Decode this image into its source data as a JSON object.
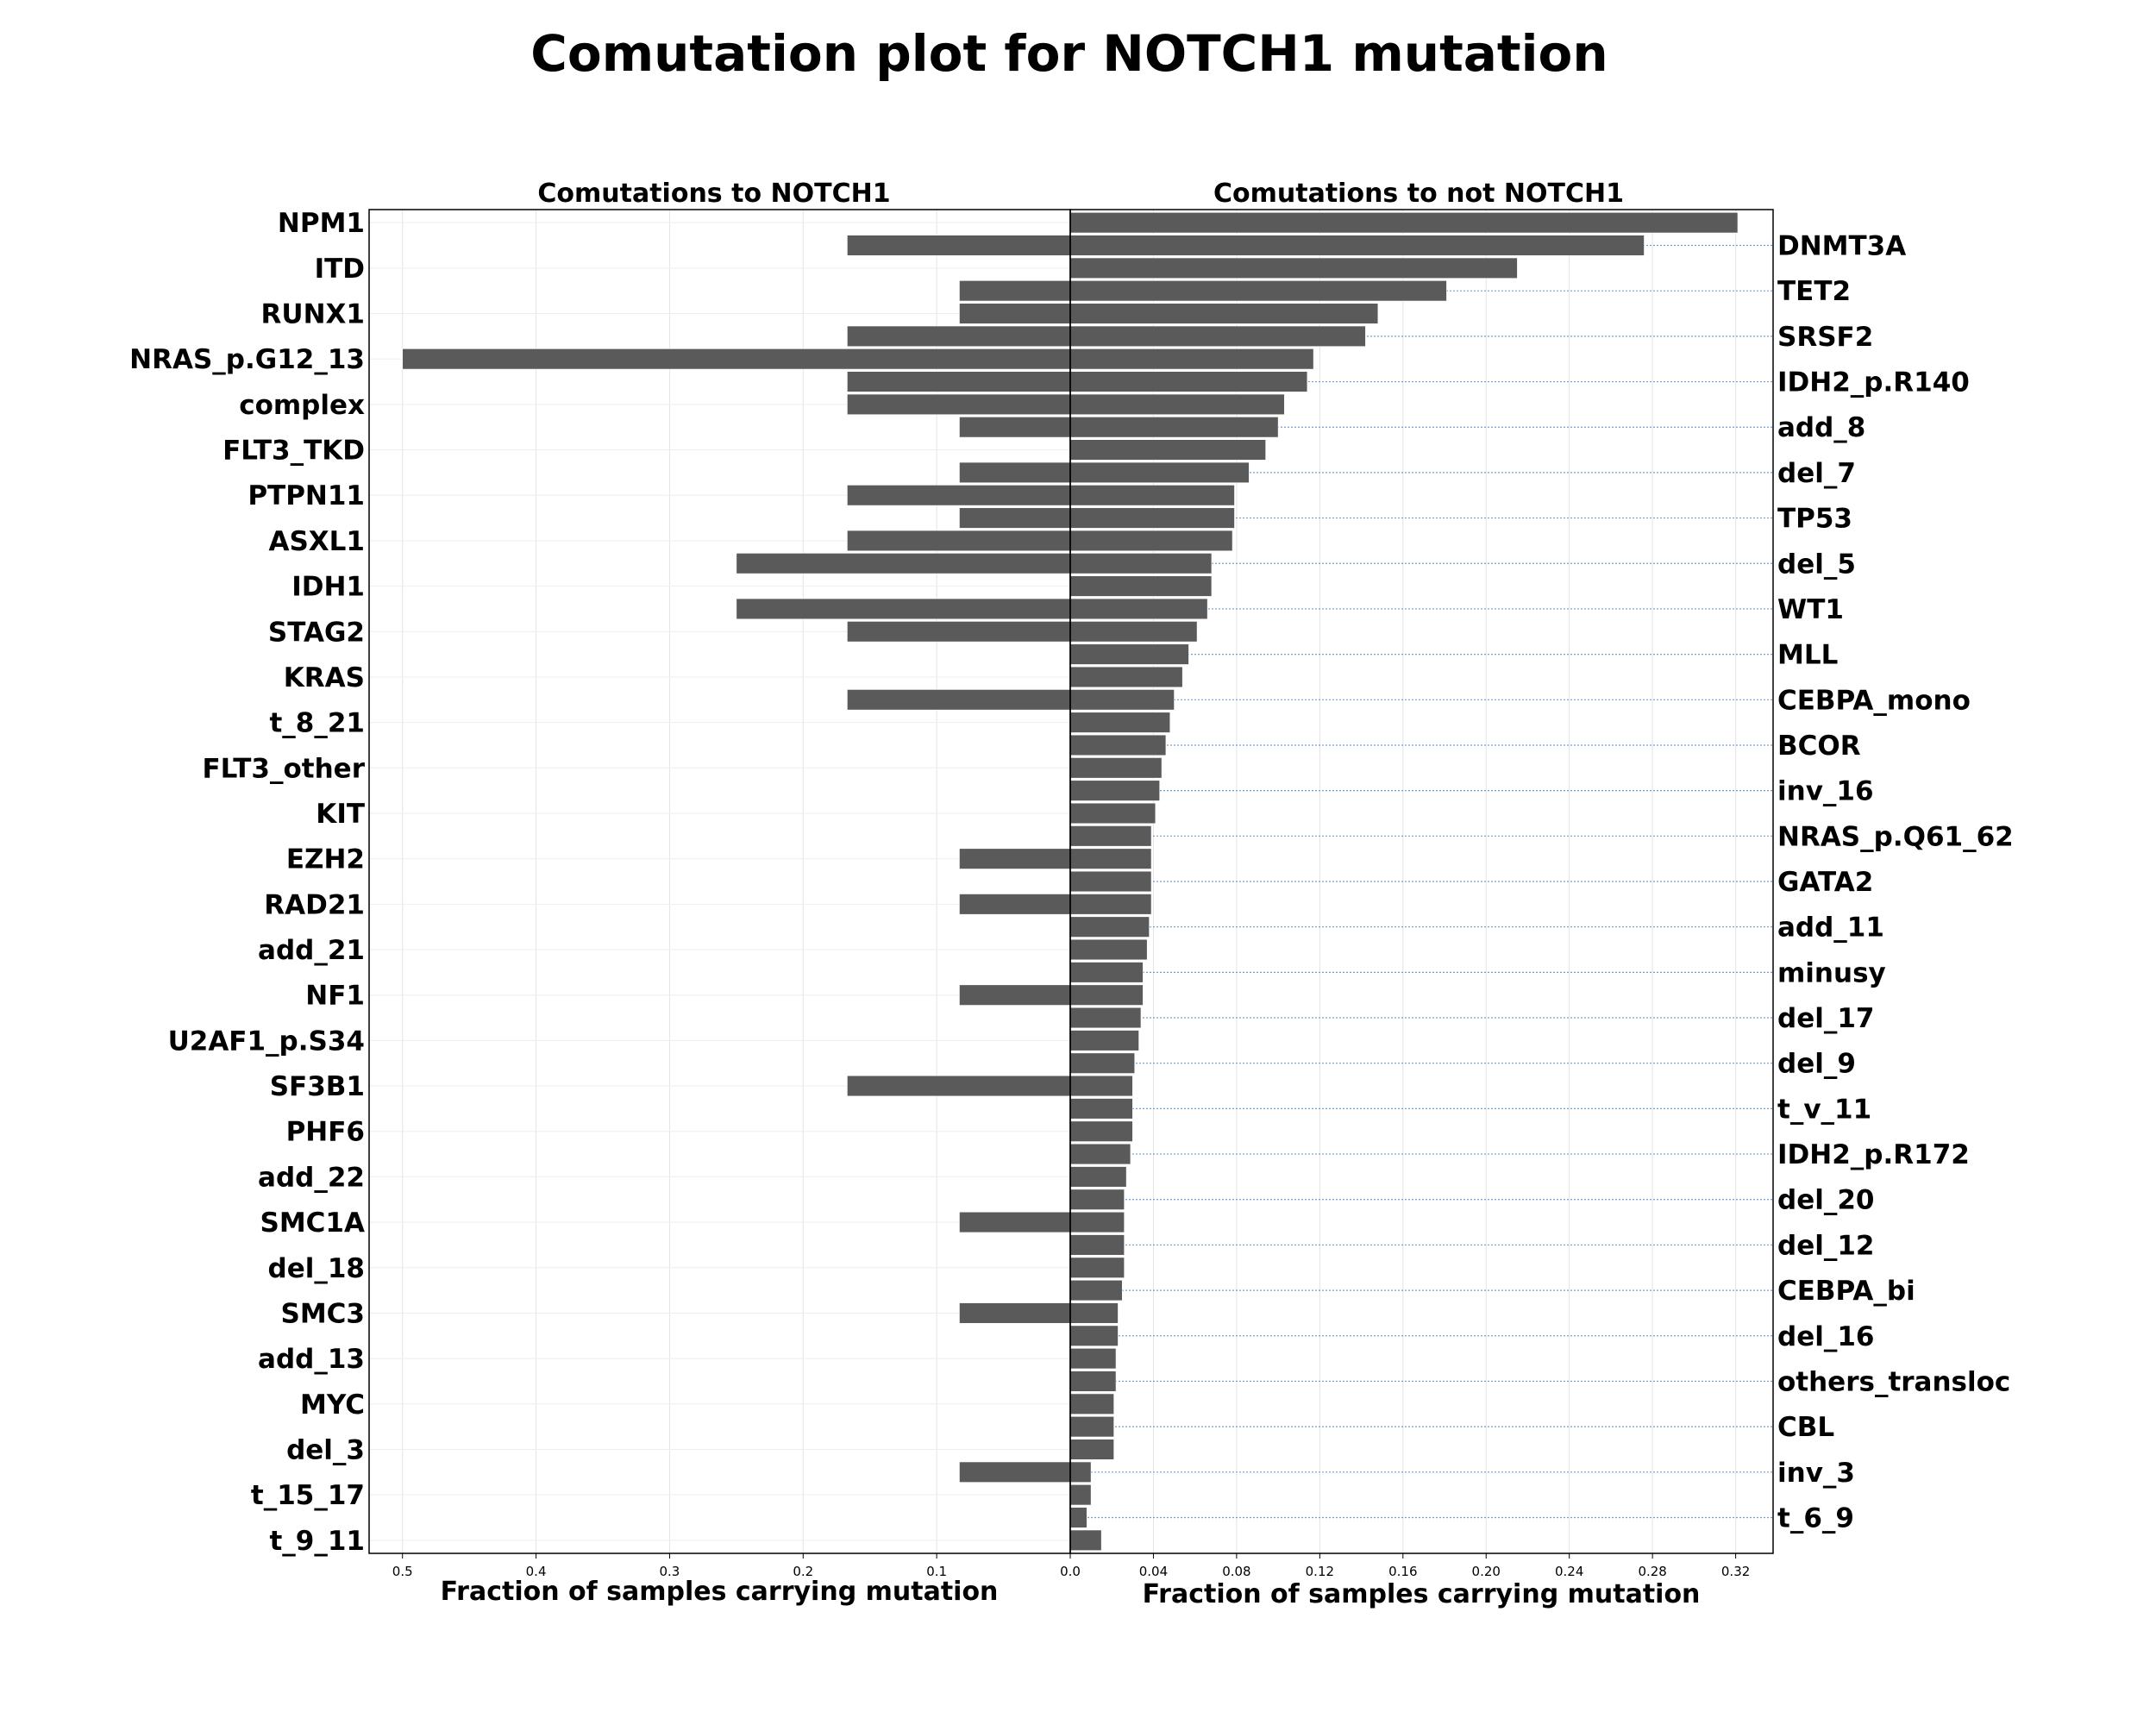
{
  "chart_data": {
    "type": "bar",
    "title": "Comutation plot for NOTCH1 mutation",
    "xlabel": "Fraction of samples carrying mutation",
    "categories": [
      "NPM1",
      "DNMT3A",
      "ITD",
      "TET2",
      "RUNX1",
      "SRSF2",
      "NRAS_p.G12_13",
      "IDH2_p.R140",
      "complex",
      "add_8",
      "FLT3_TKD",
      "del_7",
      "PTPN11",
      "TP53",
      "ASXL1",
      "del_5",
      "IDH1",
      "WT1",
      "STAG2",
      "MLL",
      "KRAS",
      "CEBPA_mono",
      "t_8_21",
      "BCOR",
      "FLT3_other",
      "inv_16",
      "KIT",
      "NRAS_p.Q61_62",
      "EZH2",
      "GATA2",
      "RAD21",
      "add_11",
      "add_21",
      "minusy",
      "NF1",
      "del_17",
      "U2AF1_p.S34",
      "del_9",
      "SF3B1",
      "t_v_11",
      "PHF6",
      "IDH2_p.R172",
      "add_22",
      "del_20",
      "SMC1A",
      "del_12",
      "del_18",
      "CEBPA_bi",
      "SMC3",
      "del_16",
      "add_13",
      "others_transloc",
      "MYC",
      "CBL",
      "del_3",
      "inv_3",
      "t_15_17",
      "t_6_9",
      "t_9_11"
    ],
    "panels": [
      {
        "subtitle": "Comutations to NOTCH1",
        "direction": "left",
        "xlim": [
          0,
          0.525
        ],
        "ticks": [
          "0.5",
          "0.4",
          "0.3",
          "0.2",
          "0.1",
          "0.0"
        ],
        "tick_values": [
          0.5,
          0.4,
          0.3,
          0.2,
          0.1,
          0.0
        ],
        "series": [
          {
            "values": [
              0,
              0.167,
              0,
              0.083,
              0.083,
              0.167,
              0.5,
              0.167,
              0.167,
              0.083,
              0,
              0.083,
              0.167,
              0.083,
              0.167,
              0.25,
              0,
              0.25,
              0.167,
              0,
              0,
              0.167,
              0,
              0,
              0,
              0,
              0,
              0,
              0.083,
              0,
              0.083,
              0,
              0,
              0,
              0.083,
              0,
              0,
              0,
              0.167,
              0,
              0,
              0,
              0,
              0,
              0.083,
              0,
              0,
              0,
              0.083,
              0,
              0,
              0,
              0,
              0,
              0,
              0.083,
              0,
              0,
              0
            ]
          }
        ]
      },
      {
        "subtitle": "Comutations to not NOTCH1",
        "direction": "right",
        "xlim": [
          0,
          0.338
        ],
        "ticks": [
          "0.0",
          "0.04",
          "0.08",
          "0.12",
          "0.16",
          "0.20",
          "0.24",
          "0.28",
          "0.32"
        ],
        "tick_values": [
          0,
          0.04,
          0.08,
          0.12,
          0.16,
          0.2,
          0.24,
          0.28,
          0.32
        ],
        "series": [
          {
            "values": [
              0.321,
              0.276,
              0.215,
              0.181,
              0.148,
              0.142,
              0.117,
              0.114,
              0.103,
              0.1,
              0.094,
              0.086,
              0.079,
              0.079,
              0.078,
              0.068,
              0.068,
              0.066,
              0.061,
              0.057,
              0.054,
              0.05,
              0.048,
              0.046,
              0.044,
              0.043,
              0.041,
              0.039,
              0.039,
              0.039,
              0.039,
              0.038,
              0.037,
              0.035,
              0.035,
              0.034,
              0.033,
              0.031,
              0.03,
              0.03,
              0.03,
              0.029,
              0.027,
              0.026,
              0.026,
              0.026,
              0.026,
              0.025,
              0.023,
              0.023,
              0.022,
              0.022,
              0.021,
              0.021,
              0.021,
              0.01,
              0.01,
              0.008,
              0.015
            ]
          }
        ]
      }
    ],
    "bar_color": "#5a5a5a",
    "left_axis_categories": [
      "NPM1",
      "ITD",
      "RUNX1",
      "NRAS_p.G12_13",
      "complex",
      "FLT3_TKD",
      "PTPN11",
      "ASXL1",
      "IDH1",
      "STAG2",
      "KRAS",
      "t_8_21",
      "FLT3_other",
      "KIT",
      "EZH2",
      "RAD21",
      "add_21",
      "NF1",
      "U2AF1_p.S34",
      "SF3B1",
      "PHF6",
      "add_22",
      "SMC1A",
      "del_18",
      "SMC3",
      "add_13",
      "MYC",
      "del_3",
      "t_15_17",
      "t_9_11"
    ],
    "right_axis_categories": [
      "DNMT3A",
      "TET2",
      "SRSF2",
      "IDH2_p.R140",
      "add_8",
      "del_7",
      "TP53",
      "del_5",
      "WT1",
      "MLL",
      "CEBPA_mono",
      "BCOR",
      "inv_16",
      "NRAS_p.Q61_62",
      "GATA2",
      "add_11",
      "minusy",
      "del_17",
      "del_9",
      "t_v_11",
      "IDH2_p.R172",
      "del_20",
      "del_12",
      "CEBPA_bi",
      "del_16",
      "others_transloc",
      "CBL",
      "inv_3",
      "t_6_9"
    ],
    "grid": true
  }
}
